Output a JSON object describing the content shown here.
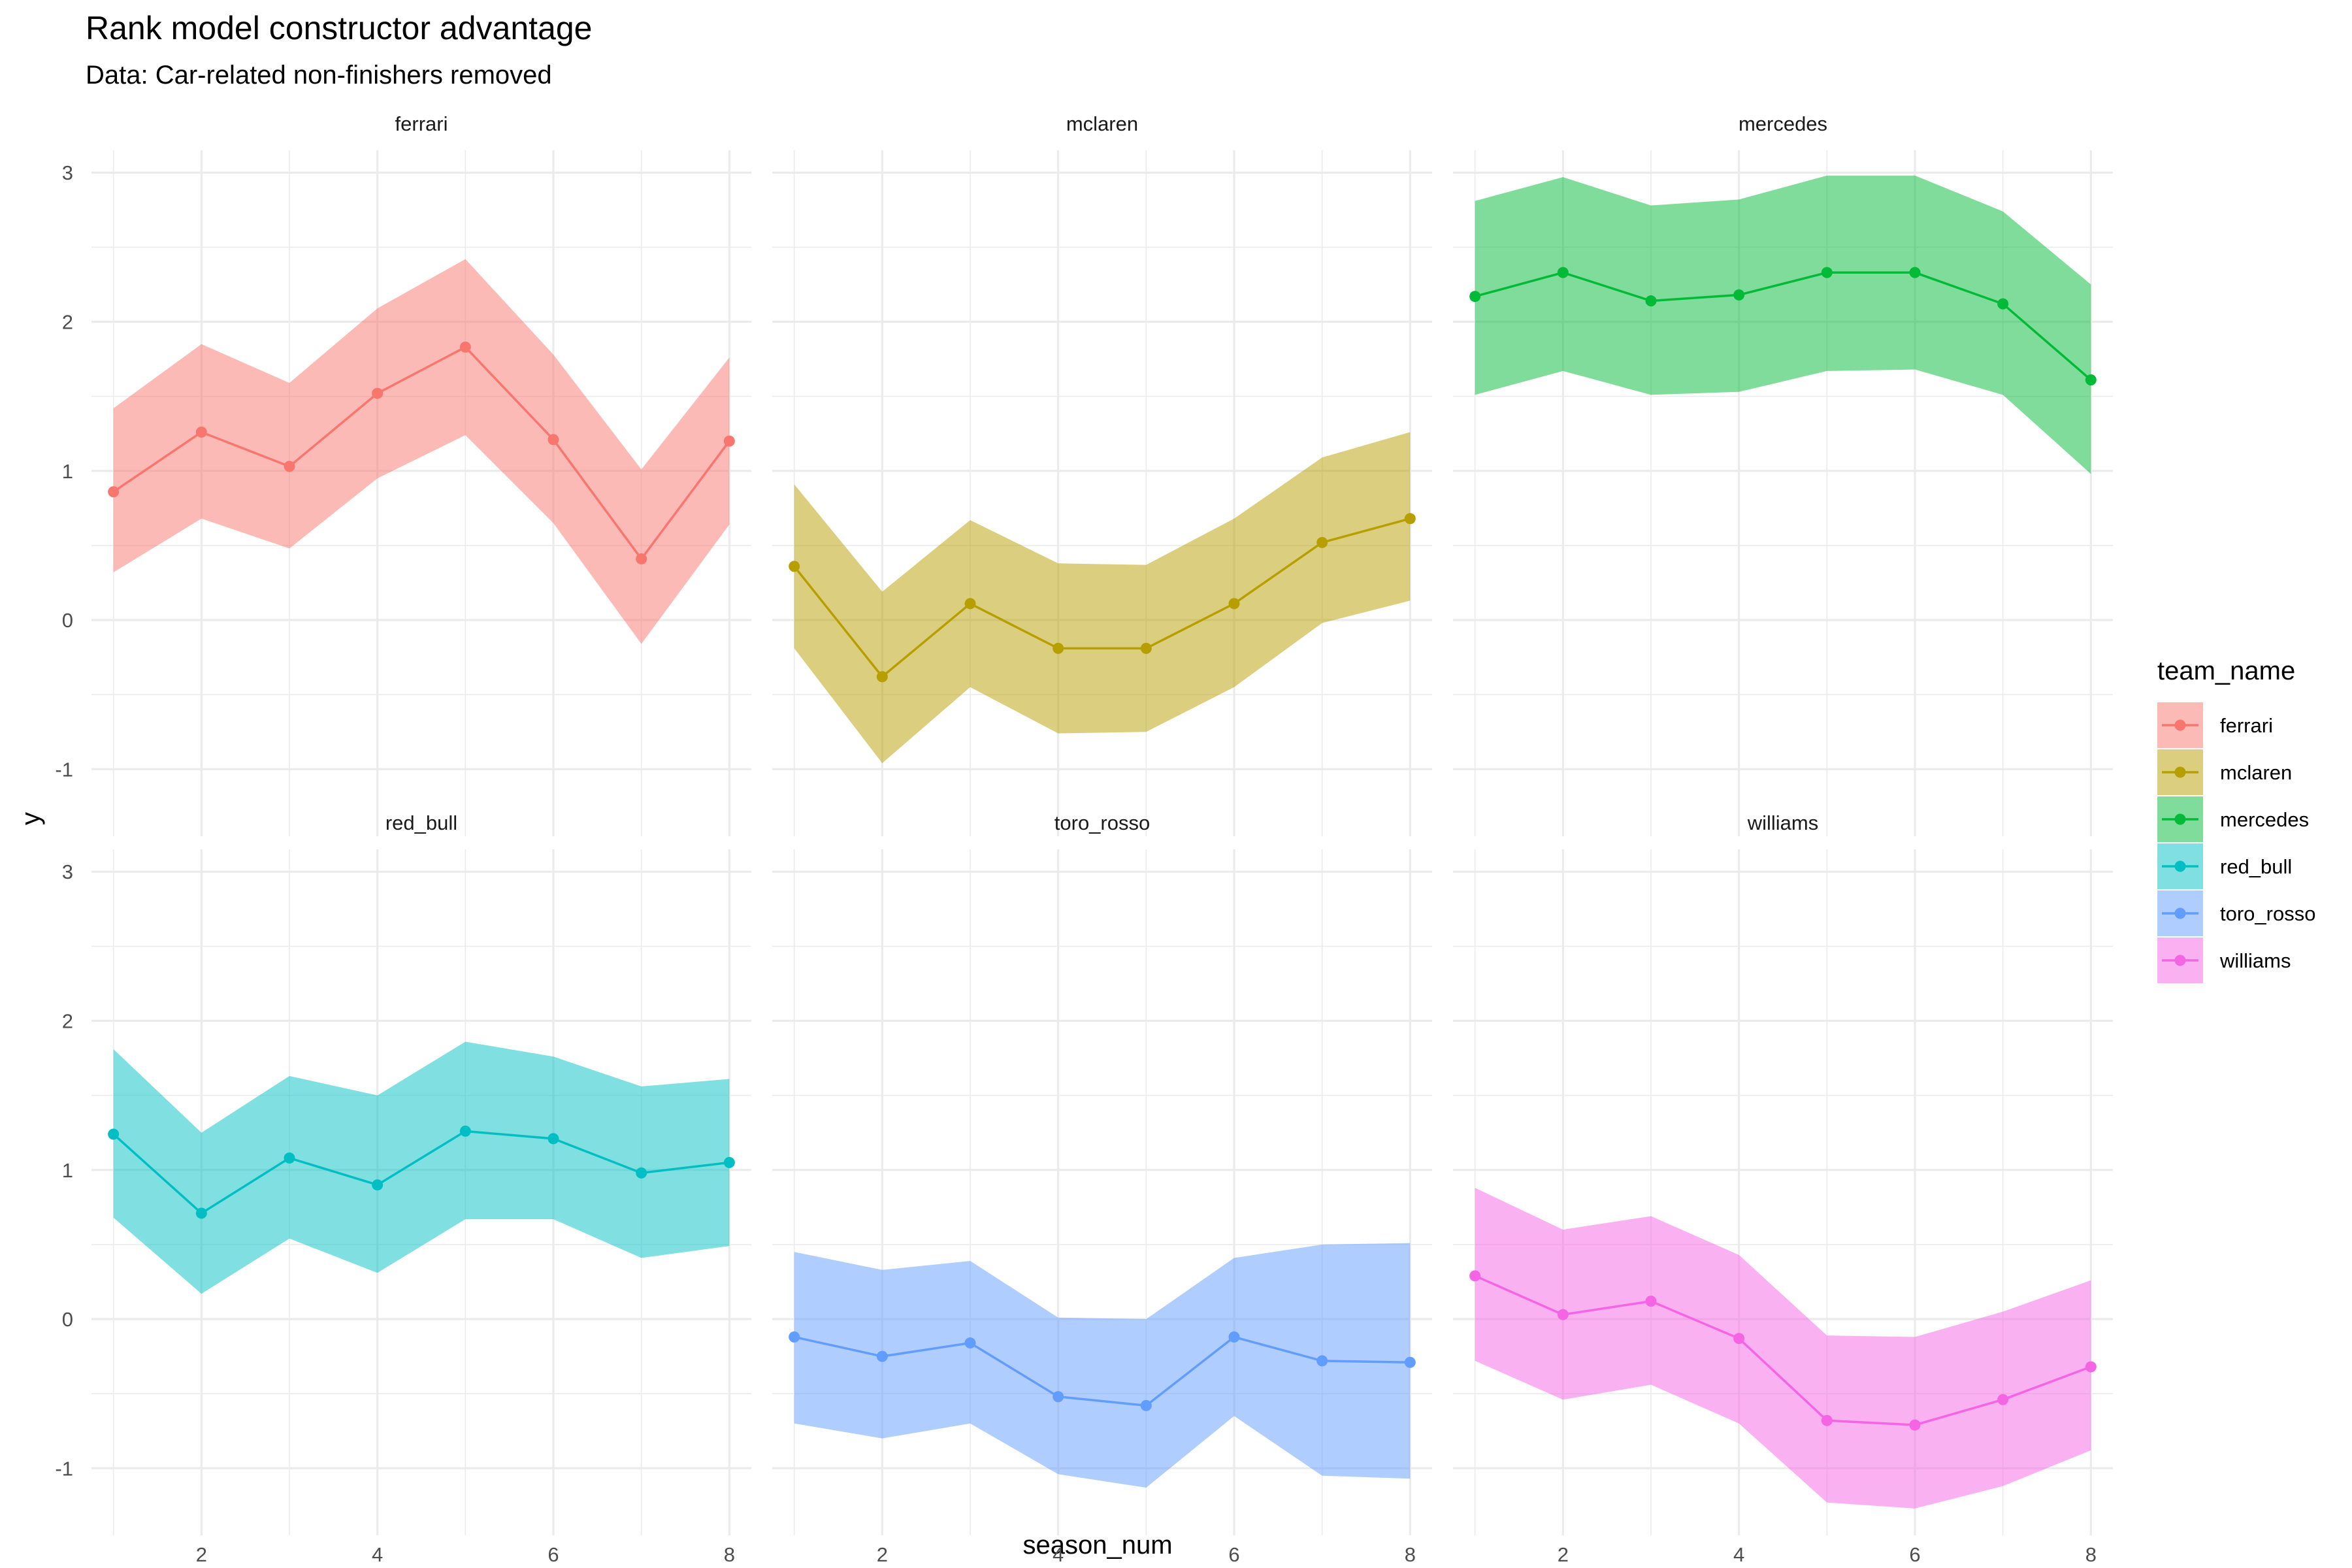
{
  "chart_data": {
    "type": "line",
    "title": "Rank model constructor advantage",
    "subtitle": "Data: Car-related non-finishers removed",
    "xlabel": "season_num",
    "ylabel": "y",
    "legend_title": "team_name",
    "legend_position": "right",
    "grid": true,
    "xlim": [
      0.75,
      8.25
    ],
    "ylim": [
      -1.45,
      3.15
    ],
    "x_ticks": [
      2,
      4,
      6,
      8
    ],
    "y_ticks": [
      -1,
      0,
      1,
      2,
      3
    ],
    "x_tick_labels": [
      "2",
      "4",
      "6",
      "8"
    ],
    "y_tick_labels": [
      "-1",
      "0",
      "1",
      "2",
      "3"
    ],
    "x": [
      1,
      2,
      3,
      4,
      5,
      6,
      7,
      8
    ],
    "series": [
      {
        "name": "ferrari",
        "color": "#F8766D",
        "values": [
          0.86,
          1.26,
          1.03,
          1.52,
          1.83,
          1.21,
          0.41,
          1.2
        ],
        "lower": [
          0.32,
          0.68,
          0.48,
          0.95,
          1.24,
          0.65,
          -0.16,
          0.64
        ],
        "upper": [
          1.42,
          1.85,
          1.59,
          2.09,
          2.42,
          1.78,
          1.01,
          1.76
        ]
      },
      {
        "name": "mclaren",
        "color": "#B79F00",
        "values": [
          0.36,
          -0.38,
          0.11,
          -0.19,
          -0.19,
          0.11,
          0.52,
          0.68
        ],
        "lower": [
          -0.19,
          -0.96,
          -0.45,
          -0.76,
          -0.75,
          -0.45,
          -0.02,
          0.13
        ],
        "upper": [
          0.91,
          0.19,
          0.67,
          0.38,
          0.37,
          0.68,
          1.09,
          1.26
        ]
      },
      {
        "name": "mercedes",
        "color": "#00BA38",
        "values": [
          2.17,
          2.33,
          2.14,
          2.18,
          2.33,
          2.33,
          2.12,
          1.61
        ],
        "lower": [
          1.51,
          1.67,
          1.51,
          1.53,
          1.67,
          1.68,
          1.51,
          0.98
        ],
        "upper": [
          2.81,
          2.97,
          2.78,
          2.82,
          2.98,
          2.98,
          2.74,
          2.25
        ]
      },
      {
        "name": "red_bull",
        "color": "#00BFC4",
        "values": [
          1.24,
          0.71,
          1.08,
          0.9,
          1.26,
          1.21,
          0.98,
          1.05
        ],
        "lower": [
          0.68,
          0.17,
          0.54,
          0.31,
          0.67,
          0.67,
          0.41,
          0.49
        ],
        "upper": [
          1.81,
          1.25,
          1.63,
          1.5,
          1.86,
          1.76,
          1.56,
          1.61
        ]
      },
      {
        "name": "toro_rosso",
        "color": "#619CFF",
        "values": [
          -0.12,
          -0.25,
          -0.16,
          -0.52,
          -0.58,
          -0.12,
          -0.28,
          -0.29
        ],
        "lower": [
          -0.7,
          -0.8,
          -0.7,
          -1.04,
          -1.13,
          -0.65,
          -1.05,
          -1.07
        ],
        "upper": [
          0.45,
          0.33,
          0.39,
          0.01,
          0.0,
          0.41,
          0.5,
          0.51
        ]
      },
      {
        "name": "williams",
        "color": "#F564E3",
        "values": [
          0.29,
          0.03,
          0.12,
          -0.13,
          -0.68,
          -0.71,
          -0.54,
          -0.32
        ],
        "lower": [
          -0.28,
          -0.54,
          -0.44,
          -0.7,
          -1.23,
          -1.27,
          -1.12,
          -0.88
        ],
        "upper": [
          0.88,
          0.6,
          0.69,
          0.43,
          -0.11,
          -0.12,
          0.05,
          0.26
        ]
      }
    ]
  }
}
